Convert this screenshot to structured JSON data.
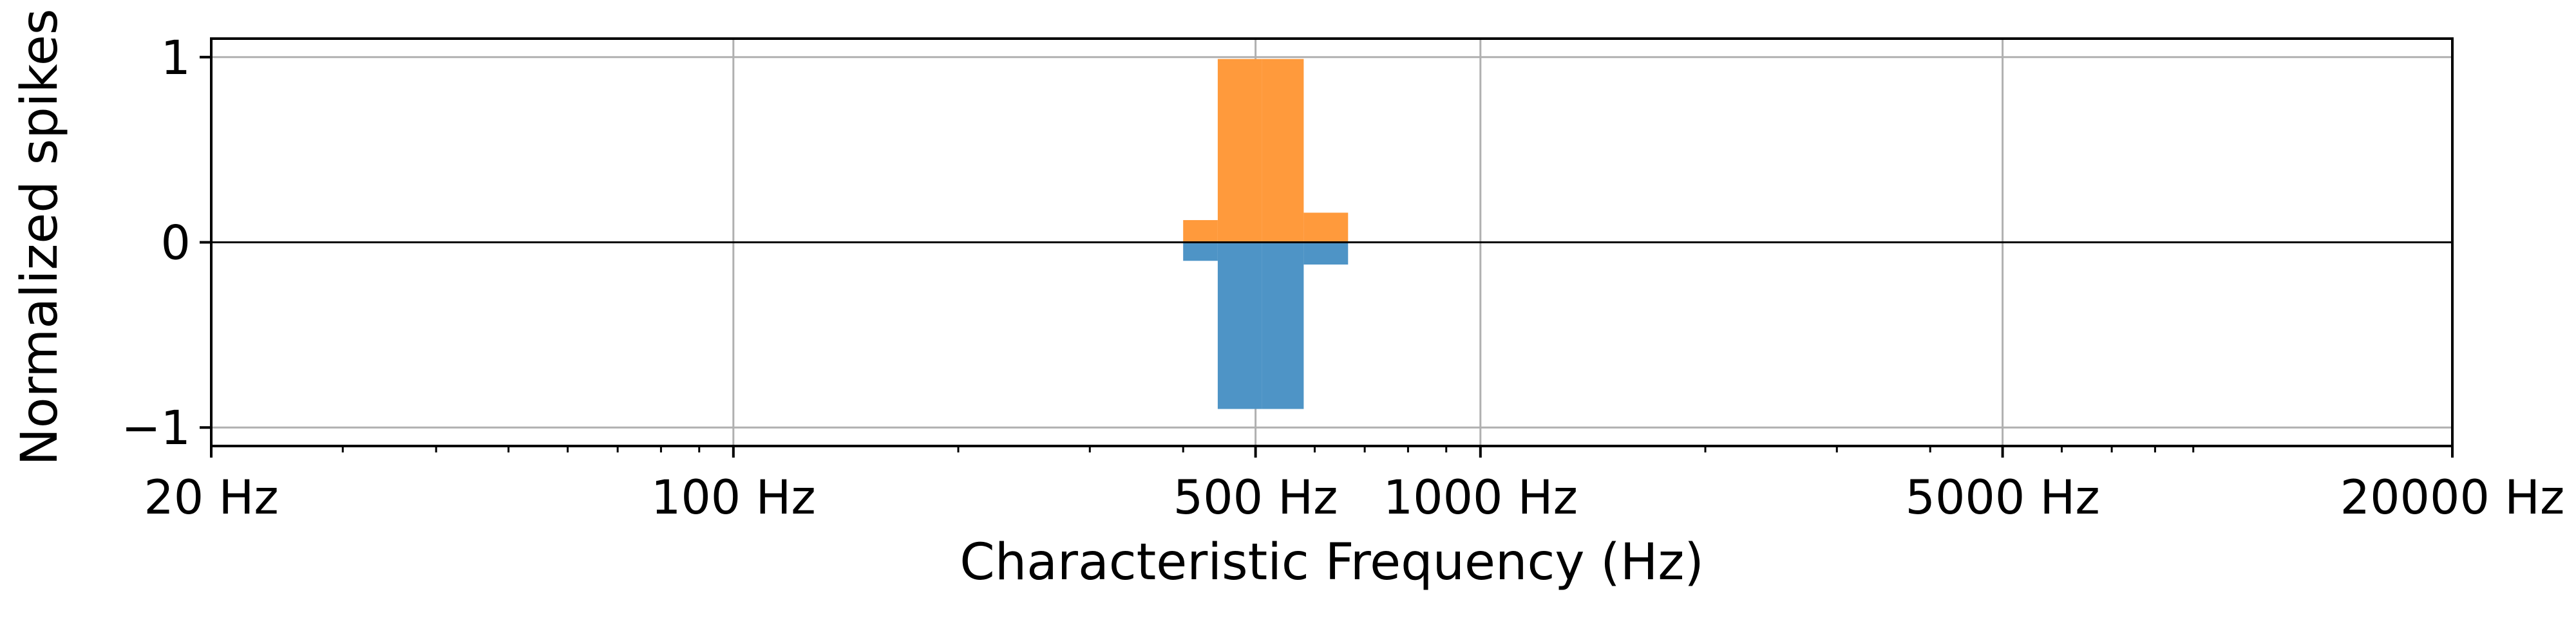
{
  "chart_data": {
    "type": "bar",
    "xscale": "log",
    "xlim": [
      20,
      20000
    ],
    "ylim": [
      -1.1,
      1.1
    ],
    "xlabel": "Characteristic Frequency (Hz)",
    "ylabel": "Normalized spikes",
    "grid": true,
    "zero_line": true,
    "x_ticks": [
      {
        "value": 20,
        "label": "20 Hz"
      },
      {
        "value": 100,
        "label": "100 Hz"
      },
      {
        "value": 500,
        "label": "500 Hz"
      },
      {
        "value": 1000,
        "label": "1000 Hz"
      },
      {
        "value": 5000,
        "label": "5000 Hz"
      },
      {
        "value": 20000,
        "label": "20000 Hz"
      }
    ],
    "y_ticks": [
      {
        "value": 1,
        "label": "1"
      },
      {
        "value": 0,
        "label": "0"
      },
      {
        "value": -1,
        "label": "−1"
      }
    ],
    "bins": [
      {
        "x0": 400,
        "x1": 445
      },
      {
        "x0": 445,
        "x1": 510
      },
      {
        "x0": 510,
        "x1": 580
      },
      {
        "x0": 580,
        "x1": 665
      }
    ],
    "series": [
      {
        "color": "#ff9a3c",
        "values": [
          0.12,
          0.99,
          0.99,
          0.16
        ]
      },
      {
        "color": "#4e94c6",
        "values": [
          -0.1,
          -0.9,
          -0.9,
          -0.12
        ]
      }
    ]
  }
}
